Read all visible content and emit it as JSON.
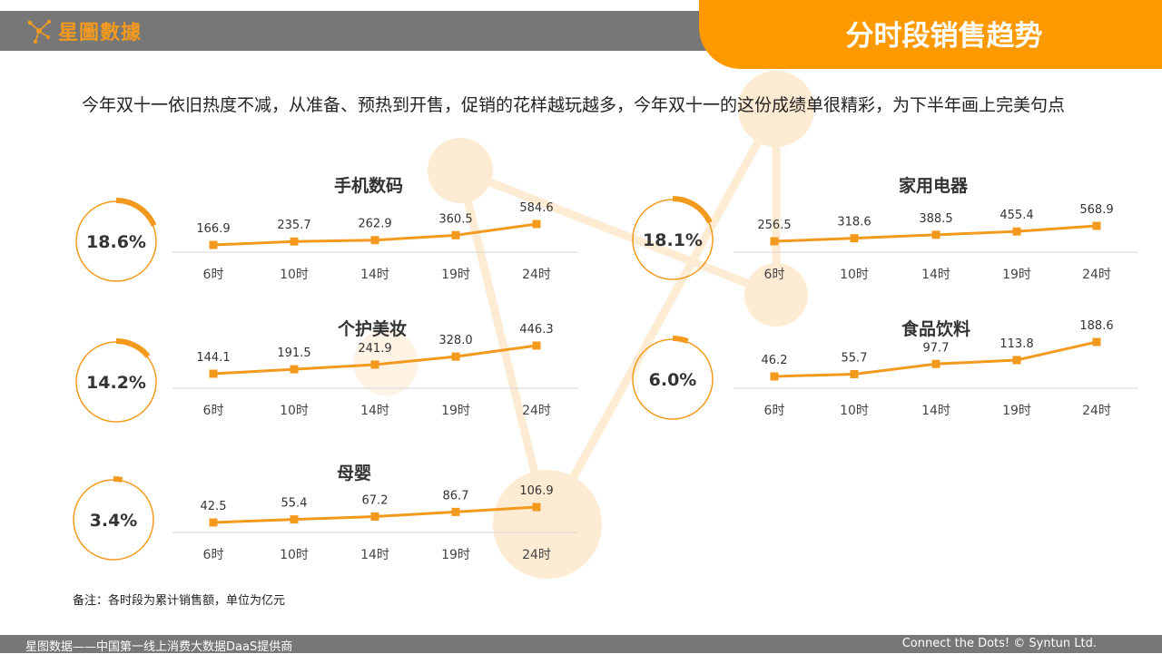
{
  "brand": {
    "logo_text": "星圖數據"
  },
  "title": "分时段销售趋势",
  "intro": "今年双十一依旧热度不减，从准备、预热到开售，促销的花样越玩越多，今年双十一的这份成绩单很精彩，为下半年画上完美句点",
  "note": "备注：各时段为累计销售额，单位为亿元",
  "footer": {
    "left": "星图数据——中国第一线上消费大数据DaaS提供商",
    "right": "Connect the Dots! © Syntun Ltd."
  },
  "colors": {
    "accent": "#FF9900",
    "line": "#F39A1E",
    "bar": "#777777"
  },
  "chart_data": [
    {
      "type": "line",
      "title": "手机数码",
      "share": "18.6%",
      "share_value": 18.6,
      "x": [
        "6时",
        "10时",
        "14时",
        "19时",
        "24时"
      ],
      "values": [
        166.9,
        235.7,
        262.9,
        360.5,
        584.6
      ],
      "labels": [
        "166.9",
        "235.7",
        "262.9",
        "360.5",
        "584.6"
      ]
    },
    {
      "type": "line",
      "title": "家用电器",
      "share": "18.1%",
      "share_value": 18.1,
      "x": [
        "6时",
        "10时",
        "14时",
        "19时",
        "24时"
      ],
      "values": [
        256.5,
        318.6,
        388.5,
        455.4,
        568.9
      ],
      "labels": [
        "256.5",
        "318.6",
        "388.5",
        "455.4",
        "568.9"
      ]
    },
    {
      "type": "line",
      "title": "个护美妆",
      "share": "14.2%",
      "share_value": 14.2,
      "x": [
        "6时",
        "10时",
        "14时",
        "19时",
        "24时"
      ],
      "values": [
        144.1,
        191.5,
        241.9,
        328.0,
        446.3
      ],
      "labels": [
        "144.1",
        "191.5",
        "241.9",
        "328.0",
        "446.3"
      ]
    },
    {
      "type": "line",
      "title": "食品饮料",
      "share": "6.0%",
      "share_value": 6.0,
      "x": [
        "6时",
        "10时",
        "14时",
        "19时",
        "24时"
      ],
      "values": [
        46.2,
        55.7,
        97.7,
        113.8,
        188.6
      ],
      "labels": [
        "46.2",
        "55.7",
        "97.7",
        "113.8",
        "188.6"
      ]
    },
    {
      "type": "line",
      "title": "母婴",
      "share": "3.4%",
      "share_value": 3.4,
      "x": [
        "6时",
        "10时",
        "14时",
        "19时",
        "24时"
      ],
      "values": [
        42.5,
        55.4,
        67.2,
        86.7,
        106.9
      ],
      "labels": [
        "42.5",
        "55.4",
        "67.2",
        "86.7",
        "106.9"
      ]
    }
  ]
}
